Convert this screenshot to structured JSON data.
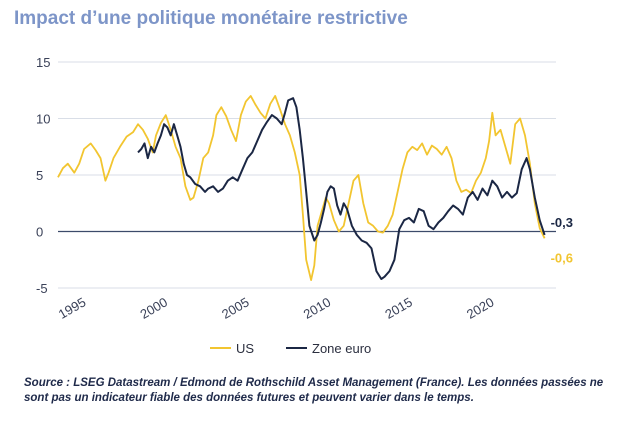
{
  "title": "Impact d’une politique monétaire restrictive",
  "source": "Source : LSEG Datastream / Edmond de Rothschild Asset Management (France). Les données passées ne sont pas un indicateur fiable des données futures et peuvent varier dans le temps.",
  "colors": {
    "us": "#f2c530",
    "euro": "#1b2744",
    "grid": "#d9dee7",
    "zero": "#3c4a6a"
  },
  "chart_data": {
    "type": "line",
    "title": "Impact d’une politique monétaire restrictive",
    "xlabel": "",
    "ylabel": "",
    "xlim": [
      1994,
      2024.5
    ],
    "ylim": [
      -5,
      15
    ],
    "y_ticks": [
      "15",
      "10",
      "5",
      "0",
      "-5"
    ],
    "x_ticks": [
      "1995",
      "2000",
      "2005",
      "2010",
      "2015",
      "2020"
    ],
    "grid": true,
    "legend": "bottom-center",
    "series": [
      {
        "name": "US",
        "end_label": "-0,6",
        "x": [
          1994.0,
          1994.3,
          1994.6,
          1995.0,
          1995.3,
          1995.6,
          1996.0,
          1996.3,
          1996.6,
          1996.9,
          1997.1,
          1997.4,
          1997.8,
          1998.2,
          1998.6,
          1998.9,
          1999.2,
          1999.5,
          1999.8,
          2000.0,
          2000.3,
          2000.6,
          2000.9,
          2001.2,
          2001.5,
          2001.8,
          2002.1,
          2002.3,
          2002.6,
          2002.9,
          2003.2,
          2003.5,
          2003.7,
          2004.0,
          2004.3,
          2004.6,
          2004.9,
          2005.2,
          2005.5,
          2005.8,
          2006.1,
          2006.4,
          2006.7,
          2007.0,
          2007.3,
          2007.6,
          2007.9,
          2008.2,
          2008.5,
          2008.8,
          2009.0,
          2009.2,
          2009.5,
          2009.7,
          2009.9,
          2010.2,
          2010.4,
          2010.6,
          2010.9,
          2011.2,
          2011.5,
          2011.8,
          2012.1,
          2012.4,
          2012.7,
          2013.0,
          2013.3,
          2013.6,
          2013.9,
          2014.2,
          2014.5,
          2014.8,
          2015.1,
          2015.4,
          2015.7,
          2016.0,
          2016.3,
          2016.6,
          2016.9,
          2017.2,
          2017.5,
          2017.8,
          2018.1,
          2018.4,
          2018.7,
          2019.0,
          2019.3,
          2019.6,
          2019.9,
          2020.2,
          2020.4,
          2020.6,
          2020.8,
          2021.1,
          2021.4,
          2021.7,
          2022.0,
          2022.3,
          2022.6,
          2022.9,
          2023.2,
          2023.5,
          2023.8
        ],
        "y": [
          4.8,
          5.6,
          6.0,
          5.2,
          6.0,
          7.3,
          7.8,
          7.2,
          6.5,
          4.5,
          5.2,
          6.5,
          7.5,
          8.4,
          8.8,
          9.5,
          9.0,
          8.2,
          7.0,
          8.5,
          9.6,
          10.3,
          9.0,
          7.5,
          6.5,
          4.0,
          2.8,
          3.0,
          4.5,
          6.5,
          7.0,
          8.5,
          10.3,
          11.0,
          10.2,
          9.0,
          8.0,
          10.3,
          11.5,
          12.0,
          11.2,
          10.5,
          10.0,
          11.3,
          12.0,
          10.8,
          9.5,
          8.5,
          7.0,
          5.0,
          1.5,
          -2.5,
          -4.3,
          -3.0,
          0.5,
          2.0,
          3.0,
          2.5,
          1.0,
          0.0,
          0.5,
          2.5,
          4.5,
          5.0,
          2.5,
          0.8,
          0.5,
          0.0,
          -0.1,
          0.5,
          1.5,
          3.5,
          5.5,
          7.0,
          7.5,
          7.2,
          7.8,
          6.8,
          7.6,
          7.3,
          6.8,
          7.5,
          6.5,
          4.5,
          3.5,
          3.7,
          3.4,
          4.5,
          5.2,
          6.5,
          8.0,
          10.5,
          8.5,
          9.0,
          7.5,
          6.0,
          9.5,
          10.0,
          8.5,
          6.0,
          2.5,
          0.3,
          -0.6
        ]
      },
      {
        "name": "Zone euro",
        "end_label": "-0,3",
        "x": [
          1998.9,
          1999.1,
          1999.3,
          1999.5,
          1999.7,
          1999.9,
          2000.1,
          2000.3,
          2000.5,
          2000.7,
          2000.9,
          2001.1,
          2001.3,
          2001.5,
          2001.7,
          2001.9,
          2002.1,
          2002.4,
          2002.7,
          2003.0,
          2003.2,
          2003.5,
          2003.8,
          2004.1,
          2004.4,
          2004.7,
          2005.0,
          2005.3,
          2005.6,
          2005.9,
          2006.2,
          2006.5,
          2006.8,
          2007.1,
          2007.4,
          2007.7,
          2007.9,
          2008.1,
          2008.4,
          2008.6,
          2008.8,
          2009.0,
          2009.2,
          2009.4,
          2009.7,
          2009.9,
          2010.1,
          2010.3,
          2010.5,
          2010.7,
          2010.9,
          2011.1,
          2011.3,
          2011.5,
          2011.7,
          2012.0,
          2012.3,
          2012.6,
          2012.9,
          2013.2,
          2013.5,
          2013.8,
          2014.0,
          2014.3,
          2014.6,
          2014.9,
          2015.2,
          2015.5,
          2015.8,
          2016.1,
          2016.4,
          2016.7,
          2017.0,
          2017.3,
          2017.6,
          2017.9,
          2018.2,
          2018.5,
          2018.8,
          2019.1,
          2019.4,
          2019.7,
          2020.0,
          2020.3,
          2020.6,
          2020.9,
          2021.2,
          2021.5,
          2021.8,
          2022.1,
          2022.4,
          2022.7,
          2022.9,
          2023.2,
          2023.5,
          2023.8
        ],
        "y": [
          7.0,
          7.3,
          7.8,
          6.5,
          7.5,
          7.0,
          7.8,
          8.5,
          9.5,
          9.2,
          8.5,
          9.5,
          8.5,
          7.5,
          6.0,
          5.0,
          4.8,
          4.2,
          4.0,
          3.5,
          3.8,
          4.0,
          3.5,
          3.8,
          4.5,
          4.8,
          4.5,
          5.5,
          6.5,
          7.0,
          8.0,
          9.0,
          9.7,
          10.3,
          10.0,
          9.5,
          10.5,
          11.6,
          11.8,
          11.0,
          9.0,
          6.5,
          3.5,
          0.5,
          -0.8,
          -0.3,
          0.8,
          2.0,
          3.5,
          4.0,
          3.8,
          2.3,
          1.5,
          2.5,
          2.0,
          0.5,
          -0.3,
          -0.8,
          -1.0,
          -1.5,
          -3.5,
          -4.2,
          -4.0,
          -3.5,
          -2.5,
          0.2,
          1.0,
          1.2,
          0.8,
          2.0,
          1.8,
          0.5,
          0.2,
          0.8,
          1.2,
          1.8,
          2.3,
          2.0,
          1.5,
          3.0,
          3.5,
          2.8,
          3.8,
          3.2,
          4.5,
          4.0,
          3.0,
          3.5,
          3.0,
          3.4,
          5.5,
          6.5,
          5.5,
          3.0,
          1.0,
          -0.3
        ]
      }
    ]
  }
}
